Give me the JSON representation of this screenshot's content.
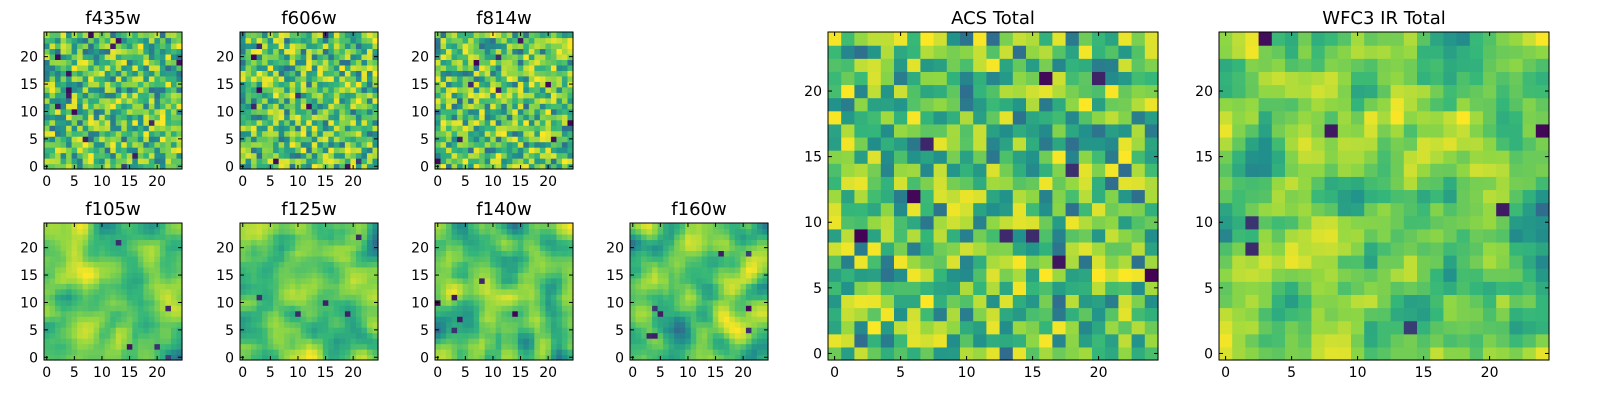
{
  "chart_data": {
    "type": "heatmap",
    "colormap": "viridis",
    "colormap_stops": [
      "#440154",
      "#31688e",
      "#21918c",
      "#35b779",
      "#90d743",
      "#fde725"
    ],
    "panels": [
      {
        "id": "f435w",
        "title": "f435w",
        "grid_size": 25,
        "xticks": [
          0,
          5,
          10,
          15,
          20
        ],
        "yticks": [
          0,
          5,
          10,
          15,
          20
        ],
        "texture": "pixel-noise",
        "smoothness": 0,
        "dark_spots": 14,
        "seed": 11
      },
      {
        "id": "f606w",
        "title": "f606w",
        "grid_size": 25,
        "xticks": [
          0,
          5,
          10,
          15,
          20
        ],
        "yticks": [
          0,
          5,
          10,
          15,
          20
        ],
        "texture": "pixel-noise",
        "smoothness": 0,
        "dark_spots": 10,
        "seed": 23
      },
      {
        "id": "f814w",
        "title": "f814w",
        "grid_size": 25,
        "xticks": [
          0,
          5,
          10,
          15,
          20
        ],
        "yticks": [
          0,
          5,
          10,
          15,
          20
        ],
        "texture": "pixel-noise",
        "smoothness": 0,
        "dark_spots": 10,
        "seed": 37
      },
      {
        "id": "f105w",
        "title": "f105w",
        "grid_size": 25,
        "xticks": [
          0,
          5,
          10,
          15,
          20
        ],
        "yticks": [
          0,
          5,
          10,
          15,
          20
        ],
        "texture": "smooth-noise",
        "smoothness": 2,
        "dark_spots": 5,
        "seed": 41
      },
      {
        "id": "f125w",
        "title": "f125w",
        "grid_size": 25,
        "xticks": [
          0,
          5,
          10,
          15,
          20
        ],
        "yticks": [
          0,
          5,
          10,
          15,
          20
        ],
        "texture": "smooth-noise",
        "smoothness": 2,
        "dark_spots": 5,
        "seed": 53
      },
      {
        "id": "f140w",
        "title": "f140w",
        "grid_size": 25,
        "xticks": [
          0,
          5,
          10,
          15,
          20
        ],
        "yticks": [
          0,
          5,
          10,
          15,
          20
        ],
        "texture": "smooth-noise",
        "smoothness": 2,
        "dark_spots": 6,
        "seed": 67
      },
      {
        "id": "f160w",
        "title": "f160w",
        "grid_size": 25,
        "xticks": [
          0,
          5,
          10,
          15,
          20
        ],
        "yticks": [
          0,
          5,
          10,
          15,
          20
        ],
        "texture": "smooth-noise",
        "smoothness": 2,
        "dark_spots": 8,
        "seed": 79
      },
      {
        "id": "acs-total",
        "title": "ACS Total",
        "grid_size": 25,
        "xticks": [
          0,
          5,
          10,
          15,
          20
        ],
        "yticks": [
          0,
          5,
          10,
          15,
          20
        ],
        "texture": "pixel-noise",
        "smoothness": 0,
        "dark_spots": 10,
        "seed": 97
      },
      {
        "id": "wfc3-ir-total",
        "title": "WFC3 IR Total",
        "grid_size": 25,
        "xticks": [
          0,
          5,
          10,
          15,
          20
        ],
        "yticks": [
          0,
          5,
          10,
          15,
          20
        ],
        "texture": "smooth-noise",
        "smoothness": 1,
        "dark_spots": 8,
        "seed": 113
      }
    ]
  }
}
